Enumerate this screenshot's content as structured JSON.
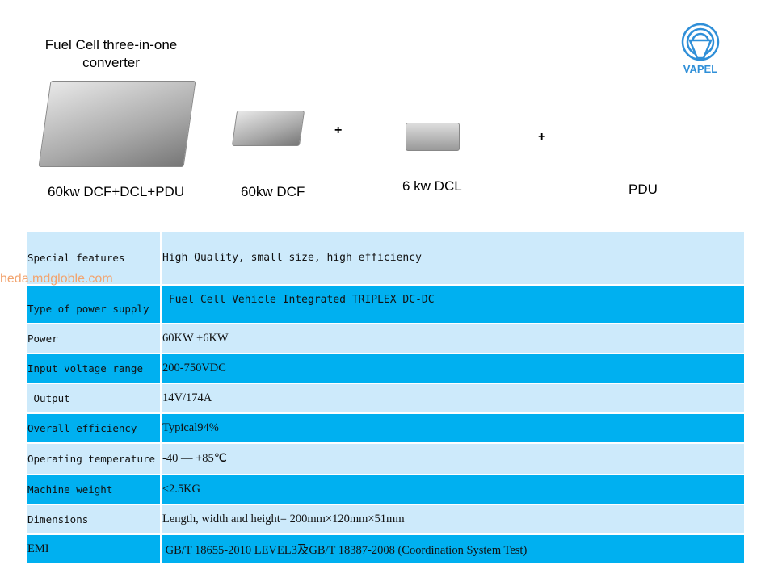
{
  "header": {
    "title": "Fuel Cell three-in-one converter",
    "logo_text": "VAPEL",
    "brand_color": "#2f8fd8"
  },
  "products": [
    {
      "label": "60kw DCF+DCL+PDU"
    },
    {
      "label": "60kw  DCF"
    },
    {
      "label": "6 kw DCL"
    },
    {
      "label": "PDU"
    }
  ],
  "plus": "+",
  "watermark": "heda.mdgloble.com",
  "colors": {
    "row_light": "#cdeafb",
    "row_dark": "#00b0f0"
  },
  "specs": [
    {
      "key": "Special features",
      "value": "High Quality, small size, high efficiency"
    },
    {
      "key": "Type of power supply",
      "value": " Fuel Cell Vehicle Integrated TRIPLEX DC-DC"
    },
    {
      "key": "Power",
      "value": "60KW +6KW"
    },
    {
      "key": "Input voltage range",
      "value": "200-750VDC"
    },
    {
      "key": " Output",
      "value": "14V/174A"
    },
    {
      "key": "Overall efficiency",
      "value": "Typical94%"
    },
    {
      "key": "Operating temperature",
      "value": "-40 — +85℃"
    },
    {
      "key": "Machine weight",
      "value": "≤2.5KG"
    },
    {
      "key": "Dimensions",
      "value": "Length, width and height= 200mm×120mm×51mm"
    },
    {
      "key": "EMI",
      "value": " GB/T 18655-2010 LEVEL3及GB/T 18387-2008 (Coordination System Test)"
    }
  ]
}
